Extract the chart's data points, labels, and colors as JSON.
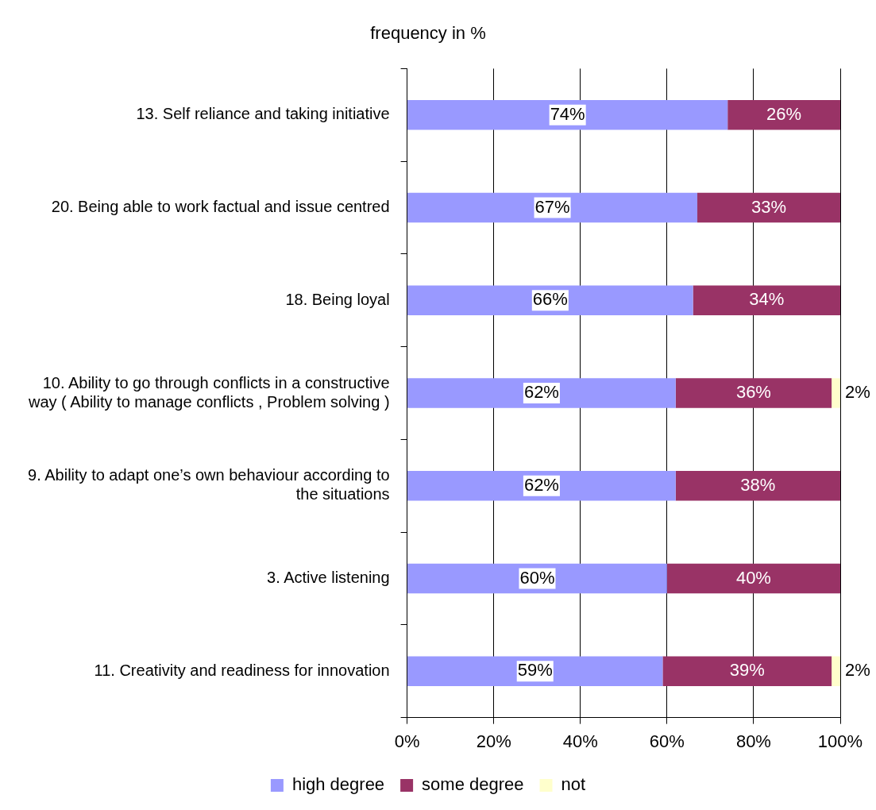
{
  "chart_data": {
    "type": "bar",
    "orientation": "horizontal",
    "stacked": true,
    "title": "frequency in %",
    "categories": [
      "13. Self reliance and taking initiative",
      "20. Being able to work factual and issue centred",
      "18. Being loyal",
      "10. Ability to go through conflicts in a constructive way ( Ability to manage conflicts , Problem solving )",
      "9. Ability to adapt one’s own behaviour according to the situations",
      "3. Active listening",
      "11. Creativity and readiness for innovation"
    ],
    "series": [
      {
        "name": "high degree",
        "color": "#9999ff",
        "values": [
          74,
          67,
          66,
          62,
          62,
          60,
          59
        ],
        "value_labels": [
          "74%",
          "67%",
          "66%",
          "62%",
          "62%",
          "60%",
          "59%"
        ]
      },
      {
        "name": "some degree",
        "color": "#993366",
        "values": [
          26,
          33,
          34,
          36,
          38,
          40,
          39
        ],
        "value_labels": [
          "26%",
          "33%",
          "34%",
          "36%",
          "38%",
          "40%",
          "39%"
        ]
      },
      {
        "name": "not",
        "color": "#ffffcc",
        "values": [
          null,
          null,
          null,
          2,
          null,
          null,
          2
        ],
        "value_labels": [
          null,
          null,
          null,
          "2%",
          null,
          null,
          "2%"
        ]
      }
    ],
    "xlim": [
      0,
      100
    ],
    "xticks": [
      {
        "value": 0,
        "label": "0%"
      },
      {
        "value": 20,
        "label": "20%"
      },
      {
        "value": 40,
        "label": "40%"
      },
      {
        "value": 60,
        "label": "60%"
      },
      {
        "value": 80,
        "label": "80%"
      },
      {
        "value": 100,
        "label": "100%"
      }
    ],
    "grid": "x",
    "legend": "bottom"
  }
}
